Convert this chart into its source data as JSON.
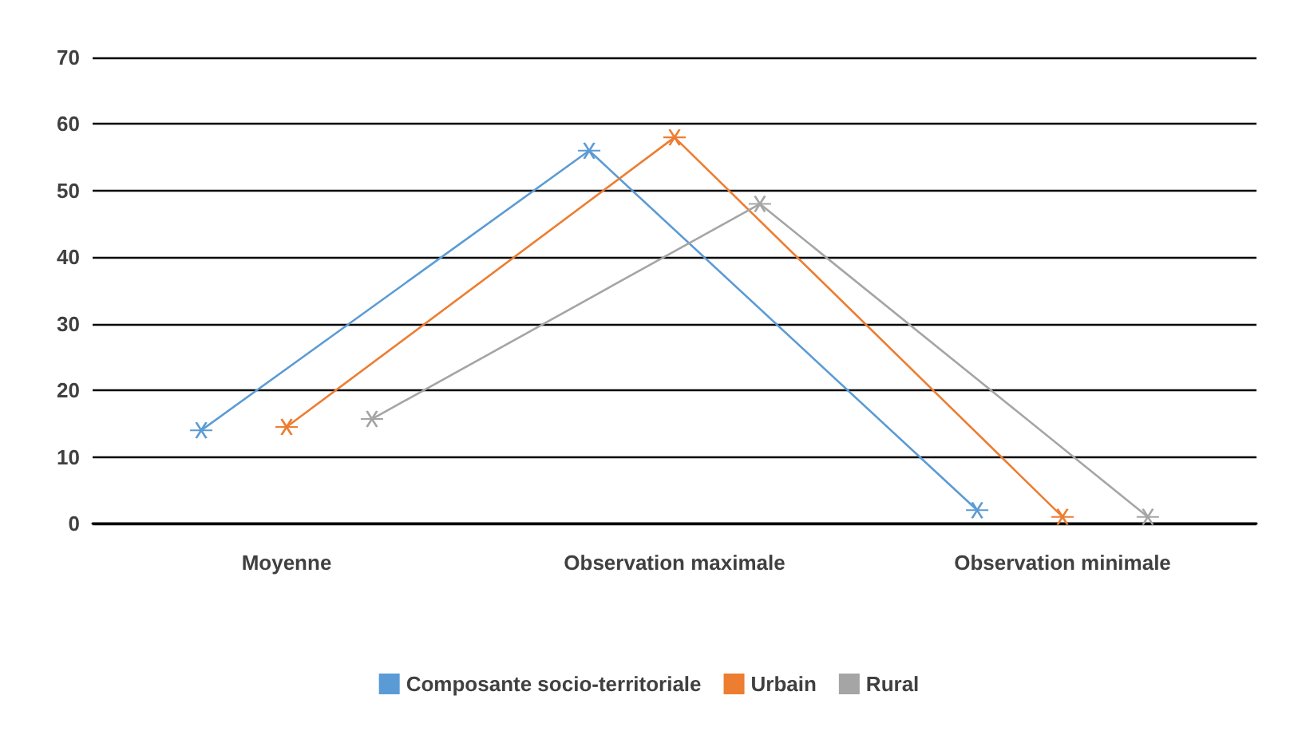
{
  "chart_data": {
    "type": "line",
    "categories": [
      "Moyenne",
      "Observation maximale",
      "Observation minimale"
    ],
    "series": [
      {
        "name": "Composante socio-territoriale",
        "color": "#5b9bd5",
        "values": [
          14,
          56,
          2
        ]
      },
      {
        "name": "Urbain",
        "color": "#ed7d31",
        "values": [
          14.5,
          58,
          1
        ]
      },
      {
        "name": "Rural",
        "color": "#a5a5a5",
        "values": [
          15.7,
          48,
          1
        ]
      }
    ],
    "ylim": [
      0,
      70
    ],
    "yticks": [
      0,
      10,
      20,
      30,
      40,
      50,
      60,
      70
    ],
    "grid": "y",
    "legend": "bottom",
    "marker": "cross",
    "line_style": "solid"
  }
}
